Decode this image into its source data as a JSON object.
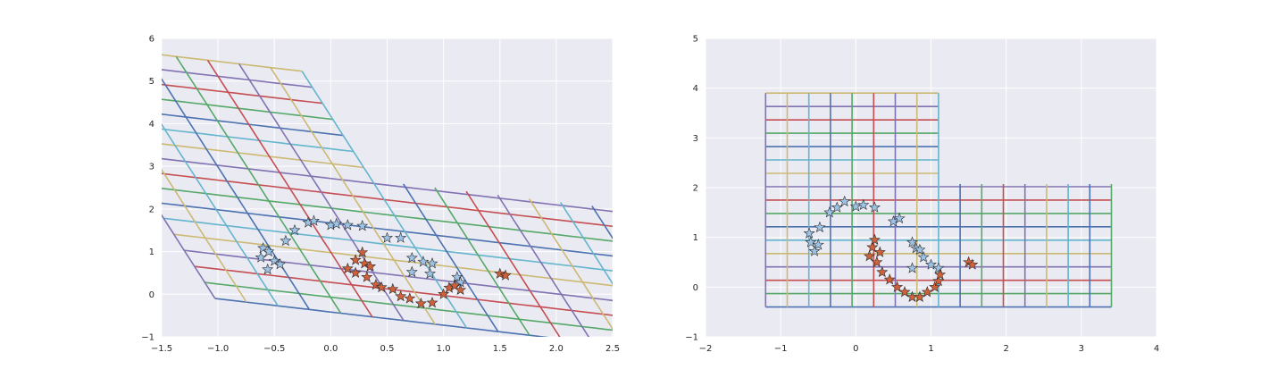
{
  "colors": {
    "axes_bg": "#EAEAF2",
    "grid": "#FFFFFF",
    "palette": [
      "#4C72B0",
      "#55A868",
      "#C44E52",
      "#8172B2",
      "#CCB974",
      "#64B5CD"
    ],
    "star_light": "#9DC3E6",
    "star_dark": "#D0623B",
    "star_edge": "#2B2B2B"
  },
  "chart_data": [
    {
      "type": "scatter",
      "title": "",
      "xlabel": "",
      "ylabel": "",
      "xlim": [
        -1.5,
        2.5
      ],
      "ylim": [
        -1,
        6
      ],
      "xticks": [
        -1.5,
        -1.0,
        -0.5,
        0.0,
        0.5,
        1.0,
        1.5,
        2.0,
        2.5
      ],
      "yticks": [
        -1,
        0,
        1,
        2,
        3,
        4,
        5,
        6
      ],
      "xtick_labels": [
        "−1.5",
        "−1.0",
        "−0.5",
        "0.0",
        "0.5",
        "1.0",
        "1.5",
        "2.0",
        "2.5"
      ],
      "ytick_labels": [
        "−1",
        "0",
        "1",
        "2",
        "3",
        "4",
        "5",
        "6"
      ],
      "grid": true,
      "warped_grid": {
        "x_range": [
          -1.2,
          3.4
        ],
        "y_range": [
          -0.4,
          3.9
        ],
        "divisions": 16,
        "shear_y": -0.3,
        "shear_x": -0.35,
        "scale_x": 0.97,
        "scale_y": 1.4,
        "hinge_x": 0.85,
        "hinge_y": 0.3
      },
      "stars_light": [
        [
          -0.6,
          1.08
        ],
        [
          -0.55,
          1.0
        ],
        [
          -0.62,
          0.86
        ],
        [
          -0.5,
          0.78
        ],
        [
          -0.56,
          0.58
        ],
        [
          -0.45,
          0.7
        ],
        [
          -0.4,
          1.25
        ],
        [
          -0.32,
          1.5
        ],
        [
          -0.2,
          1.68
        ],
        [
          -0.15,
          1.72
        ],
        [
          0.0,
          1.62
        ],
        [
          0.05,
          1.65
        ],
        [
          0.15,
          1.62
        ],
        [
          0.28,
          1.6
        ],
        [
          0.5,
          1.32
        ],
        [
          0.62,
          1.32
        ],
        [
          0.72,
          0.85
        ],
        [
          0.82,
          0.76
        ],
        [
          0.9,
          0.72
        ],
        [
          0.72,
          0.52
        ],
        [
          0.88,
          0.48
        ],
        [
          1.12,
          0.4
        ],
        [
          1.15,
          0.28
        ]
      ],
      "stars_dark": [
        [
          0.15,
          0.6
        ],
        [
          0.22,
          0.8
        ],
        [
          0.28,
          0.98
        ],
        [
          0.3,
          0.72
        ],
        [
          0.35,
          0.65
        ],
        [
          0.22,
          0.5
        ],
        [
          0.32,
          0.4
        ],
        [
          0.4,
          0.22
        ],
        [
          0.45,
          0.16
        ],
        [
          0.55,
          0.12
        ],
        [
          0.62,
          -0.05
        ],
        [
          0.7,
          -0.1
        ],
        [
          0.8,
          -0.22
        ],
        [
          0.9,
          -0.2
        ],
        [
          1.0,
          0.0
        ],
        [
          1.05,
          0.15
        ],
        [
          1.1,
          0.2
        ],
        [
          1.15,
          0.1
        ],
        [
          1.5,
          0.48
        ],
        [
          1.55,
          0.44
        ]
      ]
    },
    {
      "type": "scatter",
      "title": "",
      "xlabel": "",
      "ylabel": "",
      "xlim": [
        -2,
        4
      ],
      "ylim": [
        -1,
        5
      ],
      "xticks": [
        -2,
        -1,
        0,
        1,
        2,
        3,
        4
      ],
      "yticks": [
        -1,
        0,
        1,
        2,
        3,
        4,
        5
      ],
      "xtick_labels": [
        "−2",
        "−1",
        "0",
        "1",
        "2",
        "3",
        "4"
      ],
      "ytick_labels": [
        "−1",
        "0",
        "1",
        "2",
        "3",
        "4",
        "5"
      ],
      "grid": true,
      "warped_grid": {
        "x_range": [
          -1.2,
          3.4
        ],
        "y_range": [
          -0.4,
          3.9
        ],
        "divisions": 16,
        "hinge_x": 0.85,
        "hinge_y": 0.3
      },
      "stars_light": [
        [
          -0.62,
          1.08
        ],
        [
          -0.6,
          0.9
        ],
        [
          -0.5,
          0.85
        ],
        [
          -0.55,
          0.72
        ],
        [
          -0.48,
          1.2
        ],
        [
          -0.35,
          1.5
        ],
        [
          -0.25,
          1.6
        ],
        [
          -0.15,
          1.72
        ],
        [
          0.0,
          1.62
        ],
        [
          0.1,
          1.65
        ],
        [
          0.25,
          1.6
        ],
        [
          0.5,
          1.32
        ],
        [
          0.58,
          1.38
        ],
        [
          0.75,
          0.9
        ],
        [
          0.8,
          0.78
        ],
        [
          0.85,
          0.75
        ],
        [
          0.75,
          0.38
        ],
        [
          0.9,
          0.6
        ],
        [
          1.0,
          0.45
        ],
        [
          1.1,
          0.38
        ]
      ],
      "stars_dark": [
        [
          0.18,
          0.62
        ],
        [
          0.22,
          0.8
        ],
        [
          0.25,
          0.95
        ],
        [
          0.32,
          0.7
        ],
        [
          0.28,
          0.5
        ],
        [
          0.35,
          0.3
        ],
        [
          0.45,
          0.15
        ],
        [
          0.55,
          0.0
        ],
        [
          0.65,
          -0.1
        ],
        [
          0.75,
          -0.2
        ],
        [
          0.85,
          -0.2
        ],
        [
          0.95,
          -0.1
        ],
        [
          1.05,
          0.0
        ],
        [
          1.1,
          0.12
        ],
        [
          1.12,
          0.25
        ],
        [
          1.5,
          0.5
        ],
        [
          1.55,
          0.45
        ]
      ]
    }
  ]
}
